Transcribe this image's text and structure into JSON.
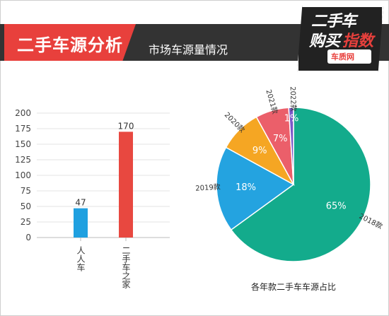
{
  "header": {
    "title": "二手车源分析",
    "subtitle": "市场车源量情况"
  },
  "logo": {
    "line1": "二手车",
    "line2a": "购买",
    "line2b": "指数",
    "badge": "车质网"
  },
  "colors": {
    "header_bg": "#333333",
    "accent_red": "#e8403c"
  },
  "chart_data": [
    {
      "type": "bar",
      "categories": [
        "人人车",
        "二手车之家"
      ],
      "values": [
        47,
        170
      ],
      "colors": [
        "#1fa0e0",
        "#e84840"
      ],
      "ylim": [
        0,
        200
      ],
      "yticks": [
        0,
        25,
        50,
        75,
        100,
        125,
        150,
        175,
        200
      ],
      "grid": true
    },
    {
      "type": "pie",
      "title": "各年款二手车车源占比",
      "slices": [
        {
          "label": "2018款",
          "value": 65,
          "text": "65%",
          "color": "#13ab8c"
        },
        {
          "label": "2019款",
          "value": 18,
          "text": "18%",
          "color": "#24a3e0"
        },
        {
          "label": "2020款",
          "value": 9,
          "text": "9%",
          "color": "#f5a623"
        },
        {
          "label": "2021款",
          "value": 7,
          "text": "7%",
          "color": "#eb5f6a"
        },
        {
          "label": "2022款",
          "value": 1,
          "text": "1%",
          "color": "#7a57c8"
        }
      ]
    }
  ]
}
